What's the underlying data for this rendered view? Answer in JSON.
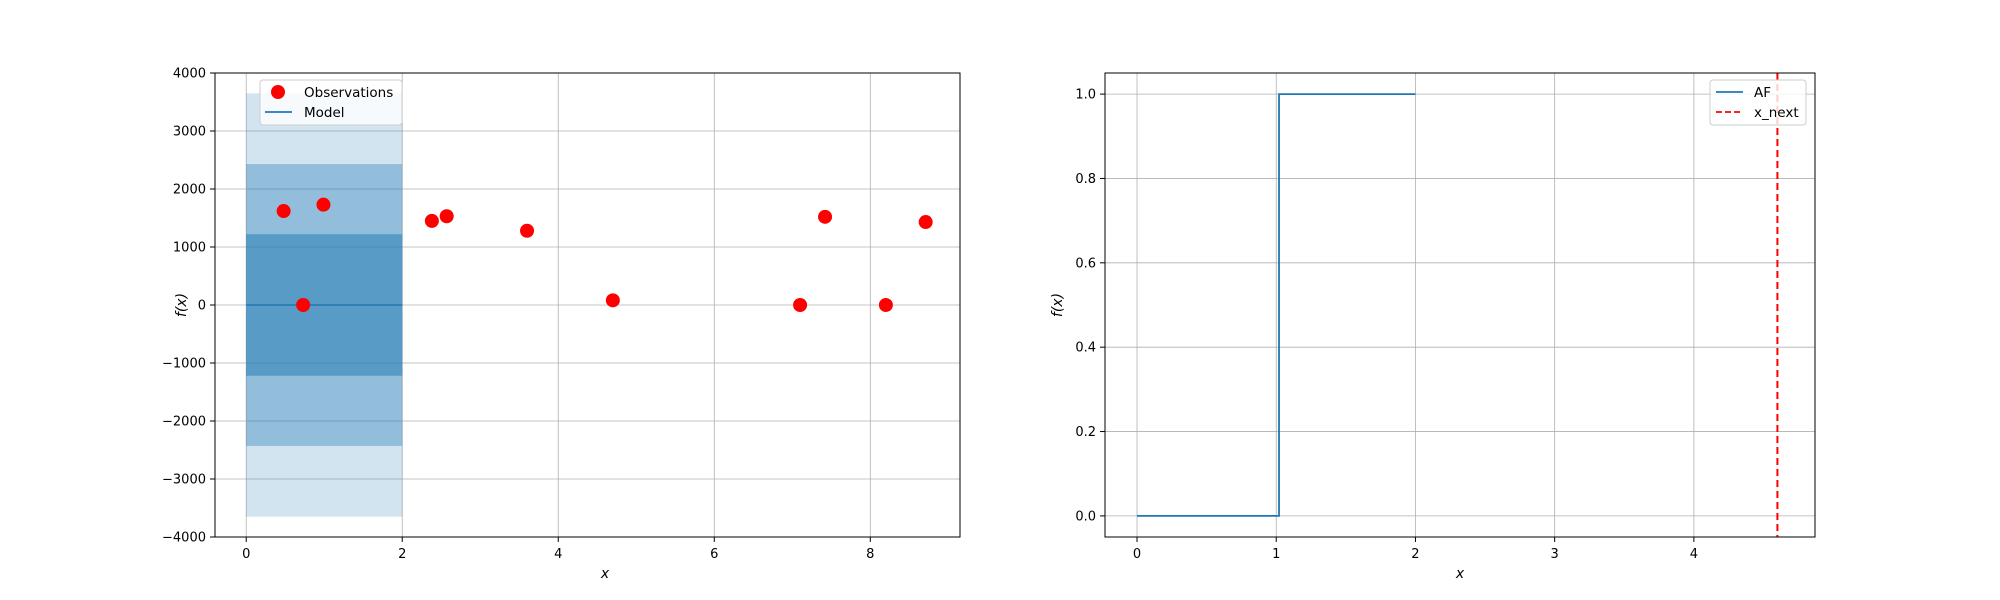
{
  "chart_data": [
    {
      "type": "scatter",
      "title": "",
      "xlabel": "x",
      "ylabel": "f(x)",
      "xlim": [
        -0.4,
        9.15
      ],
      "ylim": [
        -4000,
        4000
      ],
      "x_ticks": [
        0,
        2,
        4,
        6,
        8
      ],
      "y_ticks": [
        -4000,
        -3000,
        -2000,
        -1000,
        0,
        1000,
        2000,
        3000,
        4000
      ],
      "grid": true,
      "legend_position": "top-left",
      "legend": [
        "Observations",
        "Model"
      ],
      "colors": {
        "observations": "#ff0000",
        "model": "#1f77b4"
      },
      "observations": {
        "x": [
          0.48,
          0.73,
          0.99,
          2.38,
          2.57,
          3.6,
          4.7,
          7.1,
          7.42,
          8.2,
          8.71
        ],
        "y": [
          1620,
          0,
          1730,
          1450,
          1530,
          1280,
          80,
          0,
          1520,
          0,
          1430
        ]
      },
      "model": {
        "x": [
          0,
          2
        ],
        "mean": [
          0,
          0
        ],
        "bands": [
          {
            "lower": -3650,
            "upper": 3650,
            "opacity": 0.2
          },
          {
            "lower": -2430,
            "upper": 2430,
            "opacity": 0.35
          },
          {
            "lower": -1220,
            "upper": 1220,
            "opacity": 0.5
          }
        ]
      }
    },
    {
      "type": "line",
      "title": "",
      "xlabel": "x",
      "ylabel": "f(x)",
      "xlim": [
        -0.23,
        4.87
      ],
      "ylim": [
        -0.05,
        1.05
      ],
      "x_ticks": [
        0,
        1,
        2,
        3,
        4
      ],
      "y_ticks": [
        0.0,
        0.2,
        0.4,
        0.6,
        0.8,
        1.0
      ],
      "grid": true,
      "legend_position": "top-right",
      "legend": [
        "AF",
        "x_next"
      ],
      "colors": {
        "af": "#1f77b4",
        "x_next": "#ff0000"
      },
      "af": {
        "x": [
          0,
          1.02,
          1.02,
          2
        ],
        "y": [
          0,
          0,
          1,
          1
        ]
      },
      "x_next": 4.6
    }
  ]
}
